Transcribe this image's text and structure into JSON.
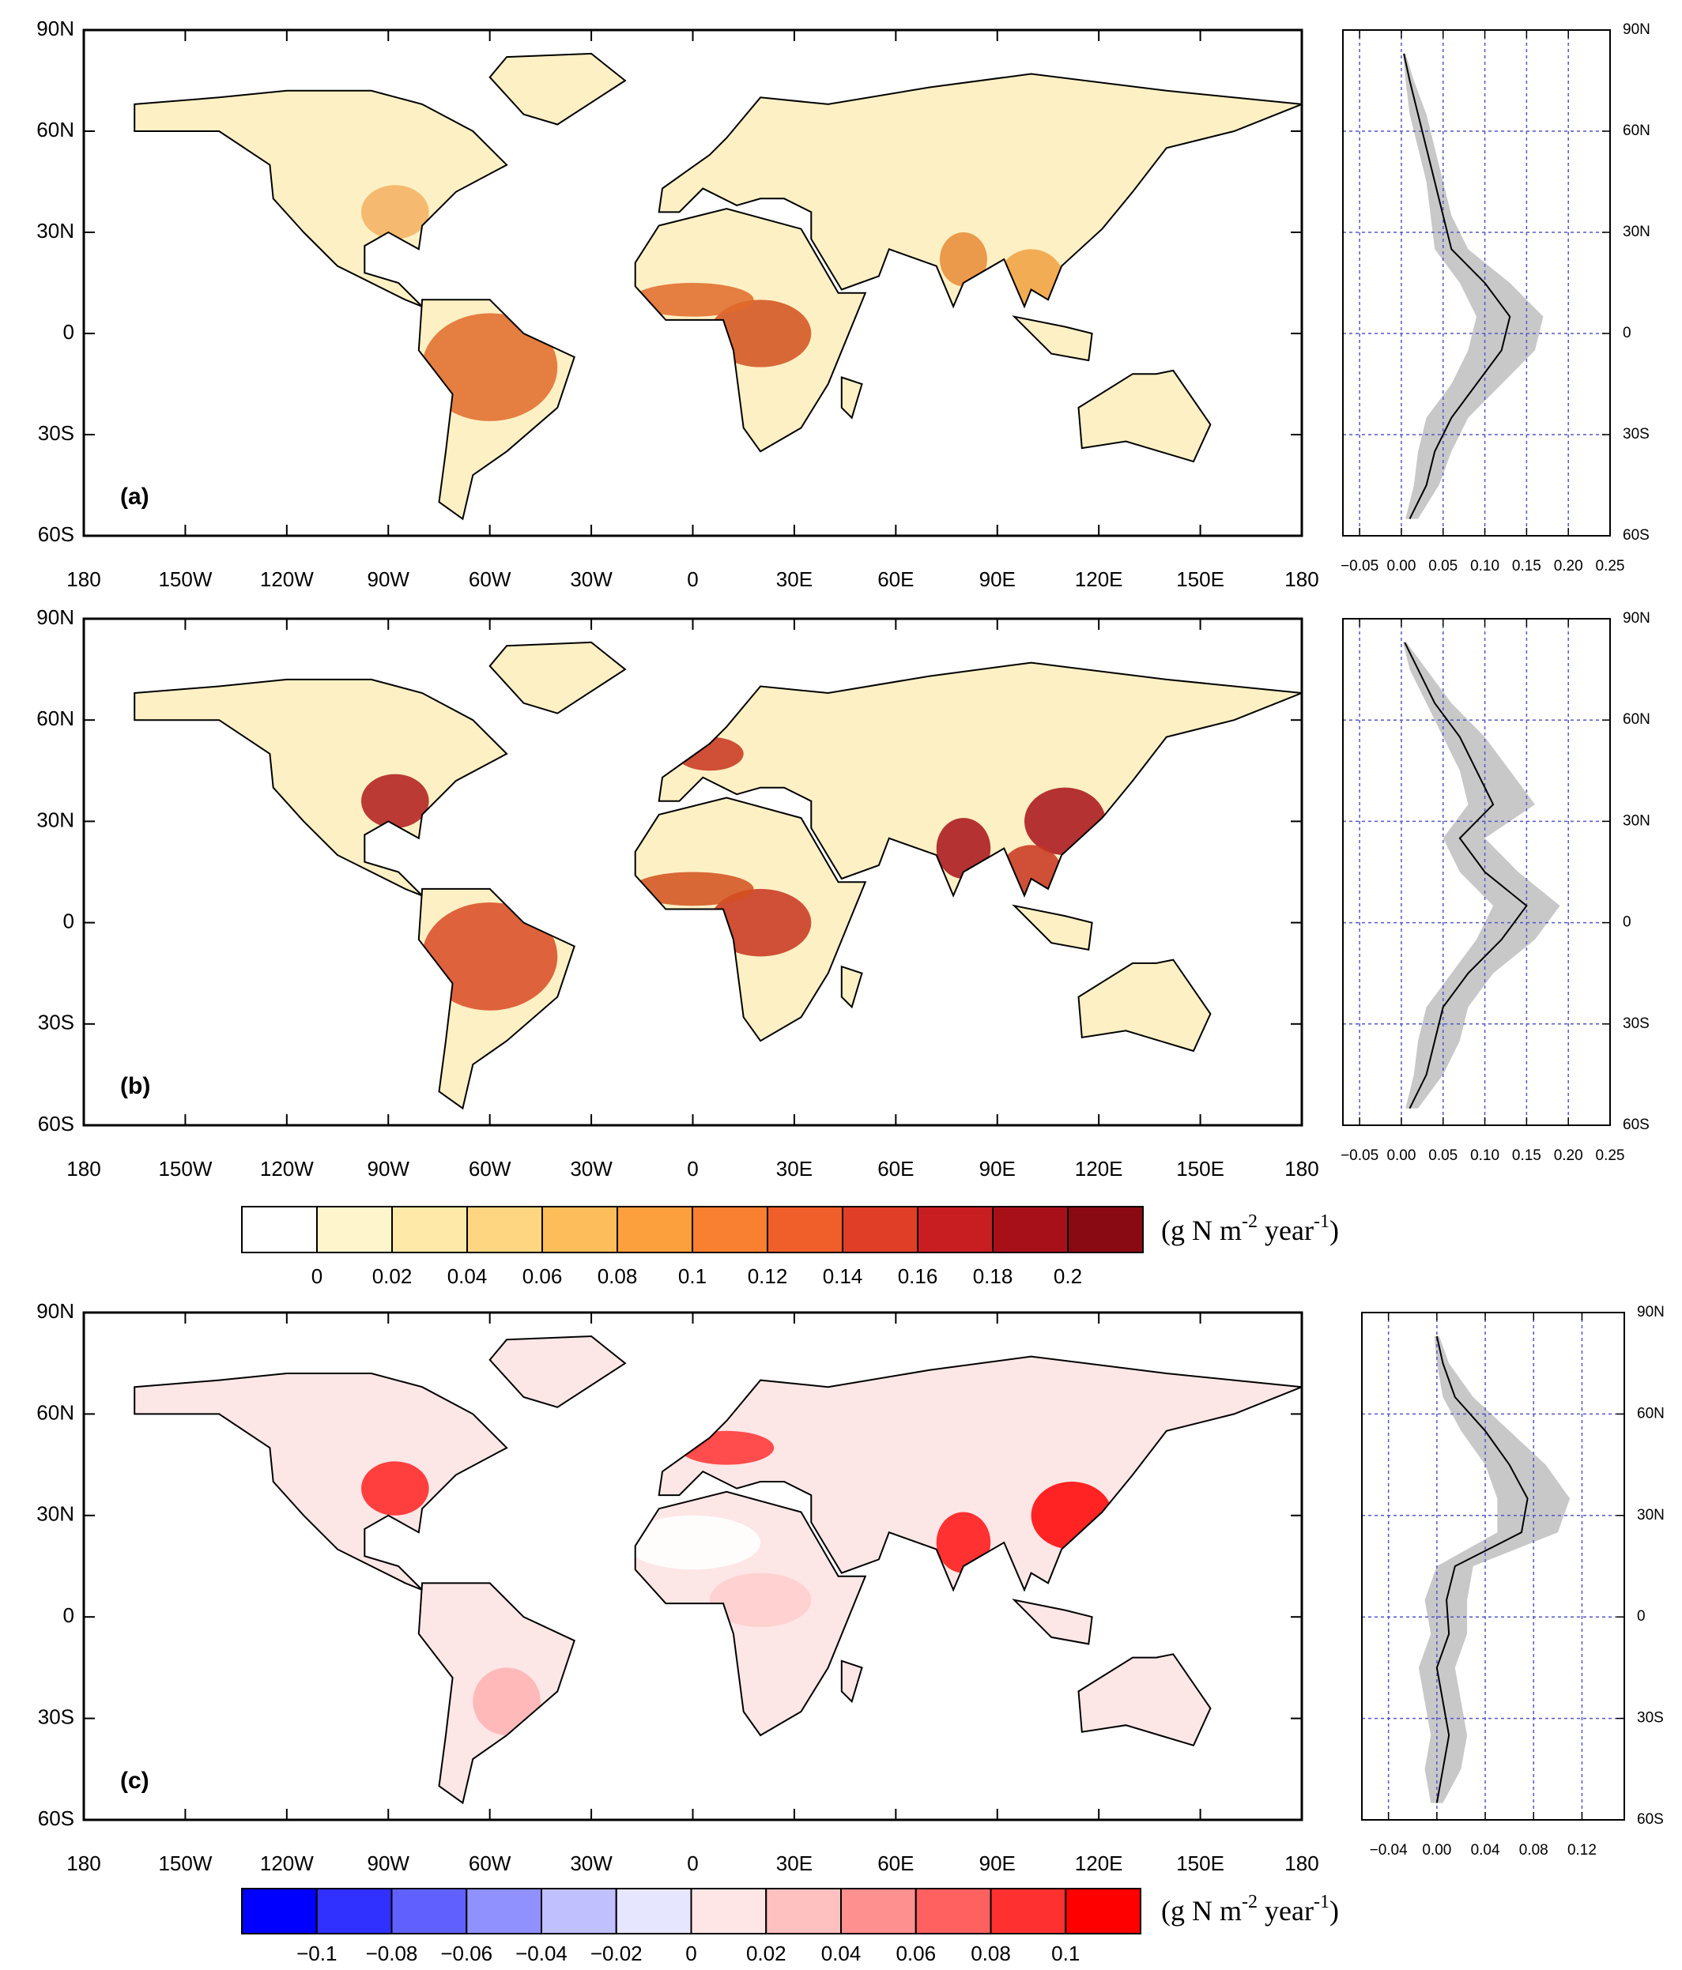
{
  "map_axes": {
    "xlim": [
      -180,
      180
    ],
    "ylim": [
      -60,
      90
    ],
    "xticks": [
      {
        "value": -180,
        "label": "180"
      },
      {
        "value": -150,
        "label": "150W"
      },
      {
        "value": -120,
        "label": "120W"
      },
      {
        "value": -90,
        "label": "90W"
      },
      {
        "value": -60,
        "label": "60W"
      },
      {
        "value": -30,
        "label": "30W"
      },
      0,
      {
        "value": 30,
        "label": "30E"
      },
      {
        "value": 60,
        "label": "60E"
      },
      {
        "value": 90,
        "label": "90E"
      },
      {
        "value": 120,
        "label": "120E"
      },
      {
        "value": 150,
        "label": "150E"
      },
      {
        "value": 180,
        "label": "180"
      }
    ],
    "yticks": [
      {
        "value": 90,
        "label": "90N"
      },
      {
        "value": 60,
        "label": "60N"
      },
      {
        "value": 30,
        "label": "30N"
      },
      0,
      {
        "value": -30,
        "label": "30S"
      },
      {
        "value": -60,
        "label": "60S"
      }
    ]
  },
  "maps": [
    {
      "label": "(a)"
    },
    {
      "label": "(b)"
    },
    {
      "label": "(c)"
    }
  ],
  "chart_data": [
    {
      "type": "line",
      "ylim": [
        -60,
        90
      ],
      "xlim": [
        -0.07,
        0.25
      ],
      "xticks": [
        {
          "value": -0.05,
          "label": "−0.05"
        },
        {
          "value": 0,
          "label": "0.00"
        },
        0.05,
        {
          "value": 0.1,
          "label": "0.10"
        },
        0.15,
        {
          "value": 0.2,
          "label": "0.20"
        },
        0.25
      ],
      "yticks": [
        {
          "value": 90,
          "label": "90N"
        },
        {
          "value": 60,
          "label": "60N"
        },
        {
          "value": 30,
          "label": "30N"
        },
        0,
        {
          "value": -30,
          "label": "30S"
        },
        {
          "value": -60,
          "label": "60S"
        }
      ],
      "lat": [
        83,
        75,
        65,
        55,
        45,
        35,
        25,
        15,
        5,
        -5,
        -15,
        -25,
        -35,
        -45,
        -55
      ],
      "values": [
        0.003,
        0.01,
        0.02,
        0.03,
        0.04,
        0.05,
        0.06,
        0.1,
        0.13,
        0.12,
        0.09,
        0.06,
        0.04,
        0.03,
        0.01
      ],
      "low": [
        0.002,
        0.005,
        0.01,
        0.02,
        0.03,
        0.035,
        0.04,
        0.07,
        0.09,
        0.08,
        0.06,
        0.03,
        0.02,
        0.015,
        0.005
      ],
      "high": [
        0.005,
        0.015,
        0.03,
        0.04,
        0.05,
        0.06,
        0.08,
        0.13,
        0.17,
        0.16,
        0.12,
        0.08,
        0.06,
        0.045,
        0.02
      ],
      "color": "#000000",
      "band_color": "#c8c8c8",
      "grid_color": "#5555cc"
    },
    {
      "type": "line",
      "ylim": [
        -60,
        90
      ],
      "xlim": [
        -0.07,
        0.25
      ],
      "xticks": [
        {
          "value": -0.05,
          "label": "−0.05"
        },
        {
          "value": 0,
          "label": "0.00"
        },
        0.05,
        {
          "value": 0.1,
          "label": "0.10"
        },
        0.15,
        {
          "value": 0.2,
          "label": "0.20"
        },
        0.25
      ],
      "yticks": [
        {
          "value": 90,
          "label": "90N"
        },
        {
          "value": 60,
          "label": "60N"
        },
        {
          "value": 30,
          "label": "30N"
        },
        0,
        {
          "value": -30,
          "label": "30S"
        },
        {
          "value": -60,
          "label": "60S"
        }
      ],
      "lat": [
        83,
        75,
        65,
        55,
        45,
        35,
        25,
        15,
        5,
        -5,
        -15,
        -25,
        -35,
        -45,
        -55
      ],
      "values": [
        0.004,
        0.02,
        0.04,
        0.07,
        0.09,
        0.11,
        0.07,
        0.1,
        0.15,
        0.12,
        0.08,
        0.05,
        0.04,
        0.03,
        0.01
      ],
      "low": [
        0.002,
        0.01,
        0.03,
        0.05,
        0.07,
        0.08,
        0.05,
        0.07,
        0.11,
        0.09,
        0.06,
        0.03,
        0.02,
        0.015,
        0.005
      ],
      "high": [
        0.006,
        0.03,
        0.06,
        0.1,
        0.13,
        0.16,
        0.1,
        0.14,
        0.19,
        0.16,
        0.11,
        0.08,
        0.07,
        0.05,
        0.02
      ],
      "color": "#000000",
      "band_color": "#c8c8c8",
      "grid_color": "#5555cc"
    },
    {
      "type": "line",
      "ylim": [
        -60,
        90
      ],
      "xlim": [
        -0.062,
        0.155
      ],
      "xticks": [
        {
          "value": -0.04,
          "label": "−0.04"
        },
        {
          "value": 0,
          "label": "0.00"
        },
        0.04,
        0.08,
        0.12
      ],
      "yticks": [
        {
          "value": 90,
          "label": "90N"
        },
        {
          "value": 60,
          "label": "60N"
        },
        {
          "value": 30,
          "label": "30N"
        },
        0,
        {
          "value": -30,
          "label": "30S"
        },
        {
          "value": -60,
          "label": "60S"
        }
      ],
      "lat": [
        83,
        75,
        65,
        55,
        45,
        35,
        25,
        15,
        5,
        -5,
        -15,
        -25,
        -35,
        -45,
        -55
      ],
      "values": [
        0.0,
        0.005,
        0.015,
        0.04,
        0.06,
        0.075,
        0.07,
        0.015,
        0.008,
        0.01,
        0.0,
        0.005,
        0.01,
        0.005,
        0.0
      ],
      "low": [
        -0.002,
        0.0,
        0.005,
        0.02,
        0.04,
        0.05,
        0.05,
        0.0,
        -0.01,
        -0.005,
        -0.015,
        -0.01,
        -0.005,
        -0.01,
        -0.005
      ],
      "high": [
        0.002,
        0.01,
        0.03,
        0.06,
        0.09,
        0.11,
        0.1,
        0.03,
        0.025,
        0.025,
        0.015,
        0.02,
        0.025,
        0.02,
        0.005
      ],
      "color": "#000000",
      "band_color": "#c8c8c8",
      "grid_color": "#5555cc"
    }
  ],
  "colorbars": [
    {
      "colors": [
        "#ffffff",
        "#fff5cc",
        "#fee9a8",
        "#fed580",
        "#fdbd5a",
        "#fca03e",
        "#f88030",
        "#f05f2a",
        "#e03e26",
        "#c81e22",
        "#a81019",
        "#8a0a13"
      ],
      "ticks": [
        0,
        0.02,
        0.04,
        0.06,
        0.08,
        0.1,
        0.12,
        0.14,
        0.16,
        0.18,
        0.2
      ],
      "units": {
        "a": "(g N m",
        "b": "-2",
        "c": " year",
        "d": "-1",
        "e": ")"
      }
    },
    {
      "colors": [
        "#0000ff",
        "#3030ff",
        "#6060ff",
        "#9090ff",
        "#c0c0ff",
        "#e6e6ff",
        "#ffe6e6",
        "#ffc0c0",
        "#ff9090",
        "#ff6060",
        "#ff3030",
        "#ff0000"
      ],
      "ticks": [
        {
          "value": -0.1,
          "label": "−0.1"
        },
        {
          "value": -0.08,
          "label": "−0.08"
        },
        {
          "value": -0.06,
          "label": "−0.06"
        },
        {
          "value": -0.04,
          "label": "−0.04"
        },
        {
          "value": -0.02,
          "label": "−0.02"
        },
        0,
        0.02,
        0.04,
        0.06,
        0.08,
        0.1
      ],
      "units": {
        "a": "(g N m",
        "b": "-2",
        "c": " year",
        "d": "-1",
        "e": ")"
      }
    }
  ]
}
